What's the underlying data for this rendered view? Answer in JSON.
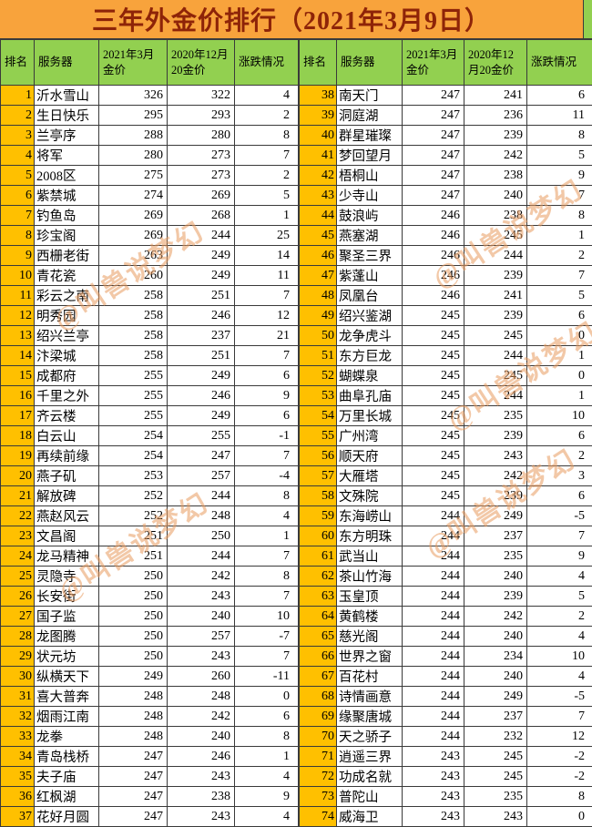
{
  "title": "三年外金价排行（2021年3月9日）",
  "watermark_text": "@叫兽说梦幻",
  "colors": {
    "title_bg": "#F8A33C",
    "title_text": "#8E2408",
    "header_bg": "#92D050",
    "rank_bg": "#FFC000",
    "cell_bg": "#FFFFFF",
    "border": "#3A3A3A",
    "watermark": "#E99C60"
  },
  "chart_data": {
    "type": "table",
    "title": "三年外金价排行（2021年3月9日）",
    "columns": [
      "排名",
      "服务器",
      "2021年3月金价",
      "2020年12月20金价",
      "涨跌情况"
    ],
    "left_rows": [
      [
        1,
        "沂水雪山",
        326,
        322,
        4
      ],
      [
        2,
        "生日快乐",
        295,
        293,
        2
      ],
      [
        3,
        "兰亭序",
        288,
        280,
        8
      ],
      [
        4,
        "将军",
        280,
        273,
        7
      ],
      [
        5,
        "2008区",
        275,
        273,
        2
      ],
      [
        6,
        "紫禁城",
        274,
        269,
        5
      ],
      [
        7,
        "钓鱼岛",
        269,
        268,
        1
      ],
      [
        8,
        "珍宝阁",
        269,
        244,
        25
      ],
      [
        9,
        "西栅老街",
        263,
        249,
        14
      ],
      [
        10,
        "青花瓷",
        260,
        249,
        11
      ],
      [
        11,
        "彩云之南",
        258,
        251,
        7
      ],
      [
        12,
        "明秀园",
        258,
        246,
        12
      ],
      [
        13,
        "绍兴兰亭",
        258,
        237,
        21
      ],
      [
        14,
        "汴梁城",
        258,
        251,
        7
      ],
      [
        15,
        "成都府",
        255,
        249,
        6
      ],
      [
        16,
        "千里之外",
        255,
        246,
        9
      ],
      [
        17,
        "齐云楼",
        255,
        249,
        6
      ],
      [
        18,
        "白云山",
        254,
        255,
        -1
      ],
      [
        19,
        "再续前缘",
        254,
        247,
        7
      ],
      [
        20,
        "燕子矶",
        253,
        257,
        -4
      ],
      [
        21,
        "解放碑",
        252,
        244,
        8
      ],
      [
        22,
        "燕赵风云",
        252,
        248,
        4
      ],
      [
        23,
        "文昌阁",
        251,
        250,
        1
      ],
      [
        24,
        "龙马精神",
        251,
        244,
        7
      ],
      [
        25,
        "灵隐寺",
        250,
        242,
        8
      ],
      [
        26,
        "长安街",
        250,
        243,
        7
      ],
      [
        27,
        "国子监",
        250,
        240,
        10
      ],
      [
        28,
        "龙图腾",
        250,
        257,
        -7
      ],
      [
        29,
        "状元坊",
        250,
        243,
        7
      ],
      [
        30,
        "纵横天下",
        249,
        260,
        -11
      ],
      [
        31,
        "喜大普奔",
        248,
        248,
        0
      ],
      [
        32,
        "烟雨江南",
        248,
        242,
        6
      ],
      [
        33,
        "龙拳",
        248,
        240,
        8
      ],
      [
        34,
        "青岛栈桥",
        247,
        246,
        1
      ],
      [
        35,
        "夫子庙",
        247,
        243,
        4
      ],
      [
        36,
        "红枫湖",
        247,
        238,
        9
      ],
      [
        37,
        "花好月圆",
        247,
        243,
        4
      ]
    ],
    "right_rows": [
      [
        38,
        "南天门",
        247,
        241,
        6
      ],
      [
        39,
        "洞庭湖",
        247,
        236,
        11
      ],
      [
        40,
        "群星璀璨",
        247,
        239,
        8
      ],
      [
        41,
        "梦回望月",
        247,
        242,
        5
      ],
      [
        42,
        "梧桐山",
        247,
        238,
        9
      ],
      [
        43,
        "少寺山",
        247,
        240,
        7
      ],
      [
        44,
        "鼓浪屿",
        246,
        238,
        8
      ],
      [
        45,
        "燕塞湖",
        246,
        245,
        1
      ],
      [
        46,
        "聚圣三界",
        246,
        244,
        2
      ],
      [
        47,
        "紫蓬山",
        246,
        239,
        7
      ],
      [
        48,
        "凤凰台",
        246,
        241,
        5
      ],
      [
        49,
        "绍兴鉴湖",
        245,
        239,
        6
      ],
      [
        50,
        "龙争虎斗",
        245,
        245,
        0
      ],
      [
        51,
        "东方巨龙",
        245,
        244,
        1
      ],
      [
        52,
        "蝴蝶泉",
        245,
        245,
        0
      ],
      [
        53,
        "曲阜孔庙",
        245,
        244,
        1
      ],
      [
        54,
        "万里长城",
        245,
        235,
        10
      ],
      [
        55,
        "广州湾",
        245,
        239,
        6
      ],
      [
        56,
        "顺天府",
        245,
        243,
        2
      ],
      [
        57,
        "大雁塔",
        245,
        242,
        3
      ],
      [
        58,
        "文殊院",
        245,
        239,
        6
      ],
      [
        59,
        "东海崂山",
        244,
        249,
        -5
      ],
      [
        60,
        "东方明珠",
        244,
        237,
        7
      ],
      [
        61,
        "武当山",
        244,
        235,
        9
      ],
      [
        62,
        "茶山竹海",
        244,
        240,
        4
      ],
      [
        63,
        "玉皇顶",
        244,
        239,
        5
      ],
      [
        64,
        "黄鹤楼",
        244,
        242,
        2
      ],
      [
        65,
        "慈光阁",
        244,
        240,
        4
      ],
      [
        66,
        "世界之窗",
        244,
        234,
        10
      ],
      [
        67,
        "百花村",
        244,
        240,
        4
      ],
      [
        68,
        "诗情画意",
        244,
        249,
        -5
      ],
      [
        69,
        "缘聚唐城",
        244,
        237,
        7
      ],
      [
        70,
        "天之骄子",
        244,
        232,
        12
      ],
      [
        71,
        "逍遥三界",
        243,
        245,
        -2
      ],
      [
        72,
        "功成名就",
        243,
        245,
        -2
      ],
      [
        73,
        "普陀山",
        243,
        235,
        8
      ],
      [
        74,
        "威海卫",
        243,
        243,
        0
      ]
    ]
  }
}
